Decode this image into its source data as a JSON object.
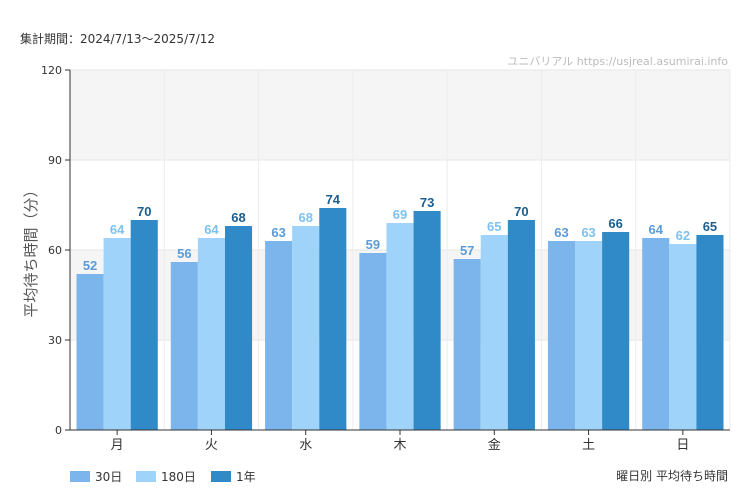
{
  "header": {
    "period": "集計期間：2024/7/13〜2025/7/12",
    "credit": "ユニバリアル  https://usjreal.asumirai.info"
  },
  "caption": "曜日別 平均待ち時間",
  "chart_data": {
    "type": "bar",
    "categories": [
      "月",
      "火",
      "水",
      "木",
      "金",
      "土",
      "日"
    ],
    "series": [
      {
        "name": "30日",
        "values": [
          52,
          56,
          63,
          59,
          57,
          63,
          64
        ],
        "color": "#7cb5ec",
        "label_color": "#5a9bd8"
      },
      {
        "name": "180日",
        "values": [
          64,
          64,
          68,
          69,
          65,
          63,
          62
        ],
        "color": "#9fd3fa",
        "label_color": "#7cc1f0"
      },
      {
        "name": "1年",
        "values": [
          70,
          68,
          74,
          73,
          70,
          66,
          65
        ],
        "color": "#2f8ac7",
        "label_color": "#1c5f8f"
      }
    ],
    "ylabel": "平均待ち時間（分）",
    "xlabel": "",
    "ylim": [
      0,
      120
    ],
    "yticks": [
      0,
      30,
      60,
      90,
      120
    ],
    "grid": true,
    "legend_position": "bottom-left",
    "band_colors": [
      "#f5f5f5",
      "#ffffff"
    ]
  }
}
